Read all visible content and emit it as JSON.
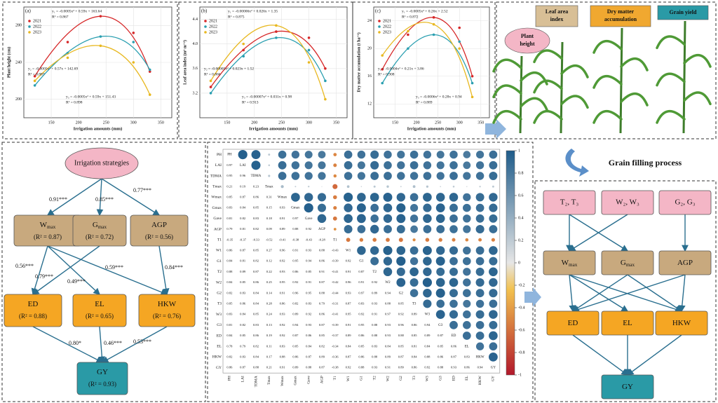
{
  "top_charts": [
    {
      "label": "(a)",
      "y_label": "Plant height (cm)",
      "x_label": "Irrigation amounts (mm)",
      "xlim": [
        100,
        370
      ],
      "xticks": [
        150,
        200,
        250,
        300,
        350
      ],
      "ylim": [
        180,
        300
      ],
      "yticks": [
        200,
        240,
        280
      ],
      "series": [
        {
          "name": "2021",
          "color": "#d62728",
          "x": [
            120,
            180,
            240,
            300,
            330
          ],
          "values": [
            225,
            262,
            290,
            272,
            230
          ]
        },
        {
          "name": "2022",
          "color": "#2a9fb0",
          "x": [
            120,
            180,
            240,
            300,
            330
          ],
          "values": [
            215,
            250,
            268,
            262,
            232
          ]
        },
        {
          "name": "2023",
          "color": "#e8b820",
          "x": [
            120,
            180,
            240,
            300,
            330
          ],
          "values": [
            220,
            245,
            258,
            240,
            205
          ]
        }
      ],
      "equations": [
        {
          "eq": "y₁ = -0.0005x² + 0.59x + 163.64",
          "r2": "R² = 0.867"
        },
        {
          "eq": "y₂ = -0.0005x² + 0.57x + 142.69",
          "r2": "R² = 0.887"
        },
        {
          "eq": "y₃ = -0.0005x² + 0.59x + 151.43",
          "r2": "R² = 0.898"
        }
      ]
    },
    {
      "label": "(b)",
      "y_label": "Leaf area index (m² m⁻²)",
      "x_label": "Irrigation amounts (mm)",
      "xlim": [
        100,
        370
      ],
      "xticks": [
        150,
        200,
        250,
        300,
        350
      ],
      "ylim": [
        2.8,
        4.6
      ],
      "yticks": [
        3.2,
        3.6,
        {
          "value": 4,
          "label": "4.0"
        },
        4.4
      ],
      "series": [
        {
          "name": "2021",
          "color": "#d62728",
          "x": [
            120,
            180,
            240,
            300,
            330
          ],
          "values": [
            3.3,
            3.9,
            4.2,
            4.1,
            3.6
          ]
        },
        {
          "name": "2022",
          "color": "#2a9fb0",
          "x": [
            120,
            180,
            240,
            300,
            330
          ],
          "values": [
            3.2,
            3.8,
            4.1,
            3.9,
            3.4
          ]
        },
        {
          "name": "2023",
          "color": "#e8b820",
          "x": [
            120,
            180,
            240,
            300,
            330
          ],
          "values": [
            3.4,
            4.0,
            4.3,
            3.7,
            3.1
          ]
        }
      ],
      "equations": [
        {
          "eq": "y₁ = -0.00006x² + 0.026x + 1.35",
          "r2": "R² = 0.875"
        },
        {
          "eq": "y₂ = -0.00005x² + 0.023x + 1.52",
          "r2": "R² = 0.866"
        },
        {
          "eq": "y₃ = -0.00007x² + 0.031x + 0.98",
          "r2": "R² = 0.913"
        }
      ]
    },
    {
      "label": "(c)",
      "y_label": "Dry matter accumulation (t ha⁻¹)",
      "x_label": "Irrigation amounts (mm)",
      "xlim": [
        100,
        370
      ],
      "xticks": [
        150,
        200,
        250,
        300,
        350
      ],
      "ylim": [
        10,
        26
      ],
      "yticks": [
        12,
        16,
        20,
        24
      ],
      "series": [
        {
          "name": "2021",
          "color": "#d62728",
          "x": [
            120,
            180,
            240,
            300,
            330
          ],
          "values": [
            17,
            22,
            24.5,
            23,
            16
          ]
        },
        {
          "name": "2022",
          "color": "#2a9fb0",
          "x": [
            120,
            180,
            240,
            300,
            330
          ],
          "values": [
            15,
            20,
            22,
            21,
            15
          ]
        },
        {
          "name": "2023",
          "color": "#e8b820",
          "x": [
            120,
            180,
            240,
            300,
            330
          ],
          "values": [
            19,
            22.5,
            23.5,
            20,
            13
          ]
        }
      ],
      "equations": [
        {
          "eq": "y₁ = -0.0005x² + 0.26x + 2.52",
          "r2": "R² = 0.872"
        },
        {
          "eq": "y₂ = -0.0004x² + 0.21x + 3.86",
          "r2": "R² = 0.908"
        },
        {
          "eq": "y₃ = -0.0006x² + 0.28x + 0.94",
          "r2": "R² = 0.889"
        }
      ]
    }
  ],
  "growth_illustration": {
    "leaf_area": [
      "Leaf area",
      "index"
    ],
    "dry_matter": [
      "Dry matter",
      "accumulation"
    ],
    "grain_yield": "Grain yield",
    "plant_height": [
      "Plant",
      "height"
    ]
  },
  "path_model": {
    "root": "Irrigation strategies",
    "nodes": [
      {
        "main": "W",
        "sub": "max",
        "r2": "(R² = 0.87)"
      },
      {
        "main": "G",
        "sub": "max",
        "r2": "(R² = 0.72)"
      },
      {
        "main": "AGP",
        "r2": "(R² = 0.56)"
      },
      {
        "main": "ED",
        "r2": "(R² = 0.88)"
      },
      {
        "main": "EL",
        "r2": "(R² = 0.65)"
      },
      {
        "main": "HKW",
        "r2": "(R² = 0.76)"
      },
      {
        "main": "GY",
        "r2": "(R² = 0.93)"
      }
    ],
    "coefficients": [
      "0.91***",
      "0.85***",
      "0.77***",
      "0.56***",
      "0.79***",
      "0.49***",
      "0.59***",
      "0.84***",
      "0.80*",
      "0.46***",
      "0.53***"
    ]
  },
  "matrix": {
    "variables": [
      "PH",
      "LAI",
      "TDMA",
      "Tmax",
      "Wmax",
      "Gmax",
      "Gave",
      "AGP",
      "T1",
      "W1",
      "G1",
      "T2",
      "W2",
      "G2",
      "T3",
      "W3",
      "G3",
      "ED",
      "EL",
      "HKW",
      "GY"
    ],
    "correlations": [
      [
        0.97
      ],
      [
        0.95,
        0.96
      ],
      [
        0.21,
        0.19,
        0.23
      ],
      [
        0.85,
        0.87,
        0.86,
        0.31
      ],
      [
        0.83,
        0.84,
        0.85,
        0.15,
        0.93
      ],
      [
        0.81,
        0.82,
        0.83,
        0.18,
        0.91,
        0.97
      ],
      [
        0.79,
        0.81,
        0.82,
        0.09,
        0.89,
        0.88,
        0.92
      ],
      [
        -0.35,
        -0.37,
        -0.33,
        -0.52,
        -0.41,
        -0.38,
        -0.43,
        -0.28
      ],
      [
        0.86,
        0.87,
        0.85,
        0.27,
        0.96,
        0.91,
        0.93,
        0.88,
        -0.43
      ],
      [
        0.84,
        0.81,
        0.82,
        0.12,
        0.92,
        0.95,
        0.94,
        0.86,
        -0.39,
        0.92
      ],
      [
        0.88,
        0.89,
        0.87,
        0.22,
        0.93,
        0.86,
        0.85,
        0.91,
        -0.41,
        0.91,
        0.87
      ],
      [
        0.84,
        0.85,
        0.86,
        0.25,
        0.95,
        0.92,
        0.91,
        0.87,
        -0.42,
        0.96,
        0.91,
        0.92
      ],
      [
        0.82,
        0.83,
        0.84,
        0.14,
        0.91,
        0.96,
        0.95,
        0.88,
        -0.44,
        0.93,
        0.97,
        0.89,
        0.94
      ],
      [
        0.85,
        0.86,
        0.84,
        0.28,
        0.86,
        0.82,
        0.83,
        0.79,
        -0.31,
        0.87,
        0.83,
        0.93,
        0.88,
        0.85
      ],
      [
        0.83,
        0.84,
        0.85,
        0.24,
        0.93,
        0.89,
        0.92,
        0.86,
        -0.41,
        0.95,
        0.92,
        0.91,
        0.97,
        0.92,
        0.89
      ],
      [
        0.81,
        0.82,
        0.83,
        0.13,
        0.92,
        0.94,
        0.93,
        0.87,
        -0.39,
        0.91,
        0.95,
        0.88,
        0.93,
        0.96,
        0.86,
        0.94
      ],
      [
        0.84,
        0.85,
        0.86,
        0.19,
        0.92,
        0.87,
        0.86,
        0.85,
        -0.37,
        0.89,
        0.86,
        0.88,
        0.93,
        0.88,
        0.85,
        0.89,
        0.87
      ],
      [
        0.78,
        0.79,
        0.82,
        0.11,
        0.83,
        0.85,
        0.84,
        0.82,
        -0.34,
        0.84,
        0.85,
        0.83,
        0.84,
        0.85,
        0.81,
        0.84,
        0.85,
        0.86
      ],
      [
        0.82,
        0.83,
        0.84,
        0.17,
        0.88,
        0.86,
        0.87,
        0.89,
        -0.36,
        0.87,
        0.86,
        0.88,
        0.89,
        0.87,
        0.84,
        0.88,
        0.86,
        0.87,
        0.83
      ],
      [
        0.86,
        0.87,
        0.88,
        0.21,
        0.91,
        0.89,
        0.88,
        0.87,
        -0.38,
        0.92,
        0.88,
        0.93,
        0.91,
        0.89,
        0.86,
        0.92,
        0.88,
        0.93,
        0.86,
        0.94
      ]
    ],
    "colorbar_lim": [
      -1,
      1
    ],
    "colorbar_ticks": [
      1,
      0.8,
      0.6,
      0.4,
      0.2,
      0,
      -0.2,
      -0.4,
      -0.6,
      -0.8,
      -1
    ]
  },
  "filling_model": {
    "title": "Grain filling process",
    "inputs": [
      "T₂, T₃",
      "W₂, W₃",
      "G₂, G₃"
    ],
    "nodes": [
      {
        "main": "W",
        "sub": "max"
      },
      {
        "main": "G",
        "sub": "max"
      },
      {
        "main": "AGP"
      },
      {
        "main": "ED"
      },
      {
        "main": "EL"
      },
      {
        "main": "HKW"
      },
      {
        "main": "GY"
      }
    ]
  }
}
